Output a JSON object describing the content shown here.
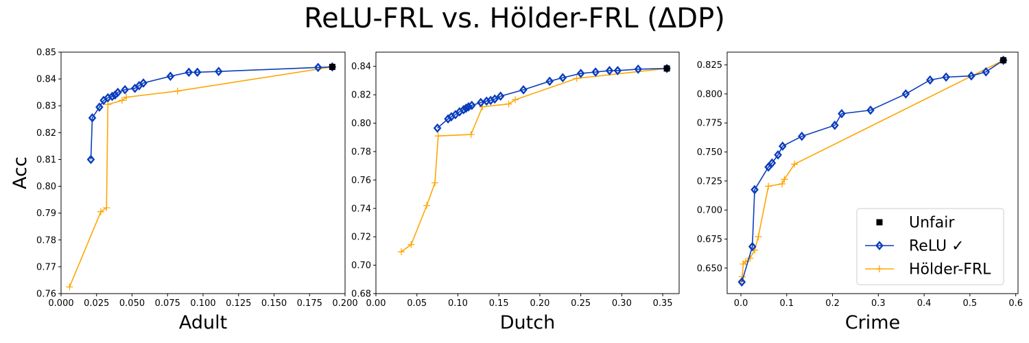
{
  "figure": {
    "title": "ReLU-FRL vs. Hölder-FRL (ΔDP)"
  },
  "colors": {
    "relu": "#0a3cbc",
    "holder": "#ffa500",
    "unfair": "#000000"
  },
  "legend": {
    "placement": "lower-right",
    "entries": [
      {
        "label": "Unfair",
        "marker": "square",
        "color": "#000000"
      },
      {
        "label": "ReLU ✓",
        "marker": "diamond",
        "color": "#0a3cbc"
      },
      {
        "label": "Hölder-FRL",
        "marker": "plus",
        "color": "#ffa500"
      }
    ]
  },
  "chart_data": [
    {
      "type": "line",
      "xlabel": "Adult",
      "ylabel": "Acc",
      "xlim": [
        0.0,
        0.2
      ],
      "ylim": [
        0.76,
        0.85
      ],
      "xticks": [
        0.0,
        0.025,
        0.05,
        0.075,
        0.1,
        0.125,
        0.15,
        0.175,
        0.2
      ],
      "xtick_labels": [
        "0.000",
        "0.025",
        "0.050",
        "0.075",
        "0.100",
        "0.125",
        "0.150",
        "0.175",
        "0.200"
      ],
      "yticks": [
        0.76,
        0.77,
        0.78,
        0.79,
        0.8,
        0.81,
        0.82,
        0.83,
        0.84,
        0.85
      ],
      "ytick_labels": [
        "0.76",
        "0.77",
        "0.78",
        "0.79",
        "0.80",
        "0.81",
        "0.82",
        "0.83",
        "0.84",
        "0.85"
      ],
      "series": [
        {
          "name": "ReLU ✓",
          "marker": "diamond",
          "x": [
            0.021,
            0.022,
            0.027,
            0.03,
            0.033,
            0.036,
            0.038,
            0.04,
            0.045,
            0.052,
            0.055,
            0.058,
            0.077,
            0.09,
            0.096,
            0.111,
            0.181,
            0.191
          ],
          "y": [
            0.81,
            0.8255,
            0.8295,
            0.832,
            0.833,
            0.8335,
            0.834,
            0.835,
            0.836,
            0.8365,
            0.8375,
            0.8385,
            0.841,
            0.8425,
            0.8425,
            0.8428,
            0.8443,
            0.8445
          ]
        },
        {
          "name": "Hölder-FRL",
          "marker": "plus",
          "x": [
            0.006,
            0.028,
            0.032,
            0.033,
            0.043,
            0.046,
            0.082,
            0.191
          ],
          "y": [
            0.7625,
            0.7905,
            0.792,
            0.8305,
            0.832,
            0.8332,
            0.8355,
            0.8445
          ]
        },
        {
          "name": "Unfair",
          "marker": "square",
          "x": [
            0.191
          ],
          "y": [
            0.8445
          ]
        }
      ]
    },
    {
      "type": "line",
      "xlabel": "Dutch",
      "ylabel": "",
      "xlim": [
        0.0,
        0.37
      ],
      "ylim": [
        0.68,
        0.85
      ],
      "xticks": [
        0.0,
        0.05,
        0.1,
        0.15,
        0.2,
        0.25,
        0.3,
        0.35
      ],
      "xtick_labels": [
        "0.00",
        "0.05",
        "0.10",
        "0.15",
        "0.20",
        "0.25",
        "0.30",
        "0.35"
      ],
      "yticks": [
        0.68,
        0.7,
        0.72,
        0.74,
        0.76,
        0.78,
        0.8,
        0.82,
        0.84
      ],
      "ytick_labels": [
        "0.68",
        "0.70",
        "0.72",
        "0.74",
        "0.76",
        "0.78",
        "0.80",
        "0.82",
        "0.84"
      ],
      "series": [
        {
          "name": "ReLU ✓",
          "marker": "diamond",
          "x": [
            0.075,
            0.088,
            0.092,
            0.097,
            0.102,
            0.107,
            0.11,
            0.113,
            0.117,
            0.128,
            0.135,
            0.14,
            0.145,
            0.152,
            0.18,
            0.212,
            0.228,
            0.25,
            0.268,
            0.285,
            0.295,
            0.32,
            0.355
          ],
          "y": [
            0.7965,
            0.803,
            0.8045,
            0.806,
            0.808,
            0.8095,
            0.8105,
            0.8115,
            0.8125,
            0.8145,
            0.8155,
            0.816,
            0.817,
            0.819,
            0.8235,
            0.8295,
            0.832,
            0.835,
            0.836,
            0.837,
            0.837,
            0.838,
            0.8385
          ]
        },
        {
          "name": "Hölder-FRL",
          "marker": "plus",
          "x": [
            0.031,
            0.043,
            0.062,
            0.072,
            0.076,
            0.116,
            0.13,
            0.162,
            0.17,
            0.245,
            0.355
          ],
          "y": [
            0.7095,
            0.7145,
            0.742,
            0.758,
            0.791,
            0.792,
            0.8115,
            0.8135,
            0.8165,
            0.8315,
            0.8385
          ]
        },
        {
          "name": "Unfair",
          "marker": "square",
          "x": [
            0.355
          ],
          "y": [
            0.8385
          ]
        }
      ]
    },
    {
      "type": "line",
      "xlabel": "Crime",
      "ylabel": "",
      "xlim": [
        -0.03,
        0.605
      ],
      "ylim": [
        0.628,
        0.836
      ],
      "xticks": [
        0.0,
        0.1,
        0.2,
        0.3,
        0.4,
        0.5,
        0.6
      ],
      "xtick_labels": [
        "0.0",
        "0.1",
        "0.2",
        "0.3",
        "0.4",
        "0.5",
        "0.6"
      ],
      "yticks": [
        0.65,
        0.675,
        0.7,
        0.725,
        0.75,
        0.775,
        0.8,
        0.825
      ],
      "ytick_labels": [
        "0.650",
        "0.675",
        "0.700",
        "0.725",
        "0.750",
        "0.775",
        "0.800",
        "0.825"
      ],
      "series": [
        {
          "name": "ReLU ✓",
          "marker": "diamond",
          "x": [
            0.002,
            0.025,
            0.03,
            0.06,
            0.068,
            0.081,
            0.091,
            0.133,
            0.205,
            0.22,
            0.283,
            0.36,
            0.413,
            0.448,
            0.503,
            0.535,
            0.573
          ],
          "y": [
            0.638,
            0.6685,
            0.7175,
            0.737,
            0.7405,
            0.7475,
            0.755,
            0.7635,
            0.773,
            0.783,
            0.786,
            0.8,
            0.812,
            0.8145,
            0.8155,
            0.819,
            0.829
          ]
        },
        {
          "name": "Hölder-FRL",
          "marker": "plus",
          "x": [
            0.001,
            0.003,
            0.005,
            0.01,
            0.02,
            0.03,
            0.038,
            0.06,
            0.09,
            0.095,
            0.117,
            0.573
          ],
          "y": [
            0.6385,
            0.6425,
            0.6535,
            0.6555,
            0.6585,
            0.6655,
            0.677,
            0.7205,
            0.7225,
            0.7265,
            0.7395,
            0.829
          ]
        },
        {
          "name": "Unfair",
          "marker": "square",
          "x": [
            0.573
          ],
          "y": [
            0.829
          ]
        }
      ]
    }
  ]
}
